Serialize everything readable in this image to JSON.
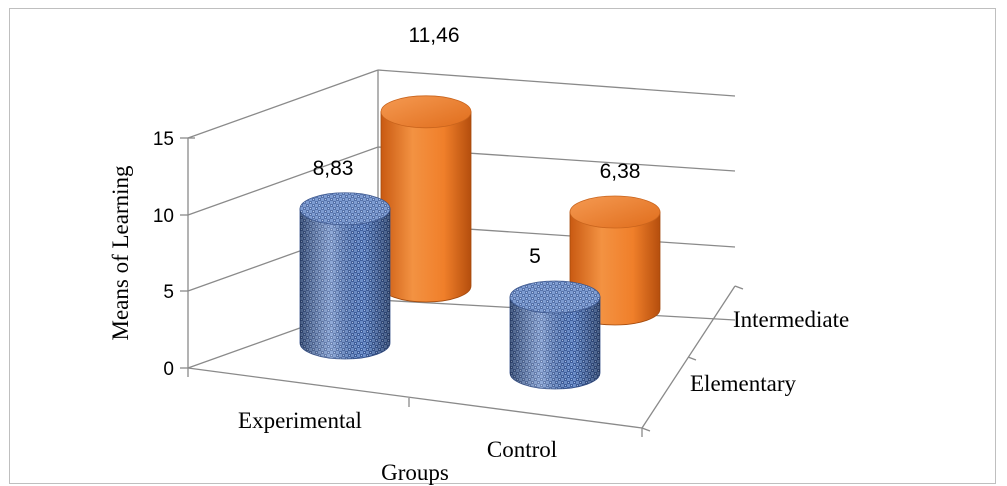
{
  "chart_data": {
    "type": "bar",
    "subtype": "3d-cylinder",
    "title": "",
    "xlabel": "Groups",
    "ylabel": "Means of Learning",
    "zlabels": [
      "Elementary",
      "Intermediate"
    ],
    "categories": [
      "Experimental",
      "Control"
    ],
    "ylim": [
      0,
      15
    ],
    "yticks": [
      "0",
      "5",
      "10",
      "15"
    ],
    "grid": true,
    "series": [
      {
        "name": "Elementary",
        "values": [
          8.83,
          5
        ],
        "labels": [
          "8,83",
          "5"
        ],
        "color": "#5b7fbf",
        "pattern": "woven-texture"
      },
      {
        "name": "Intermediate",
        "values": [
          11.46,
          6.38
        ],
        "labels": [
          "11,46",
          "6,38"
        ],
        "color": "#f07f2a"
      }
    ]
  }
}
